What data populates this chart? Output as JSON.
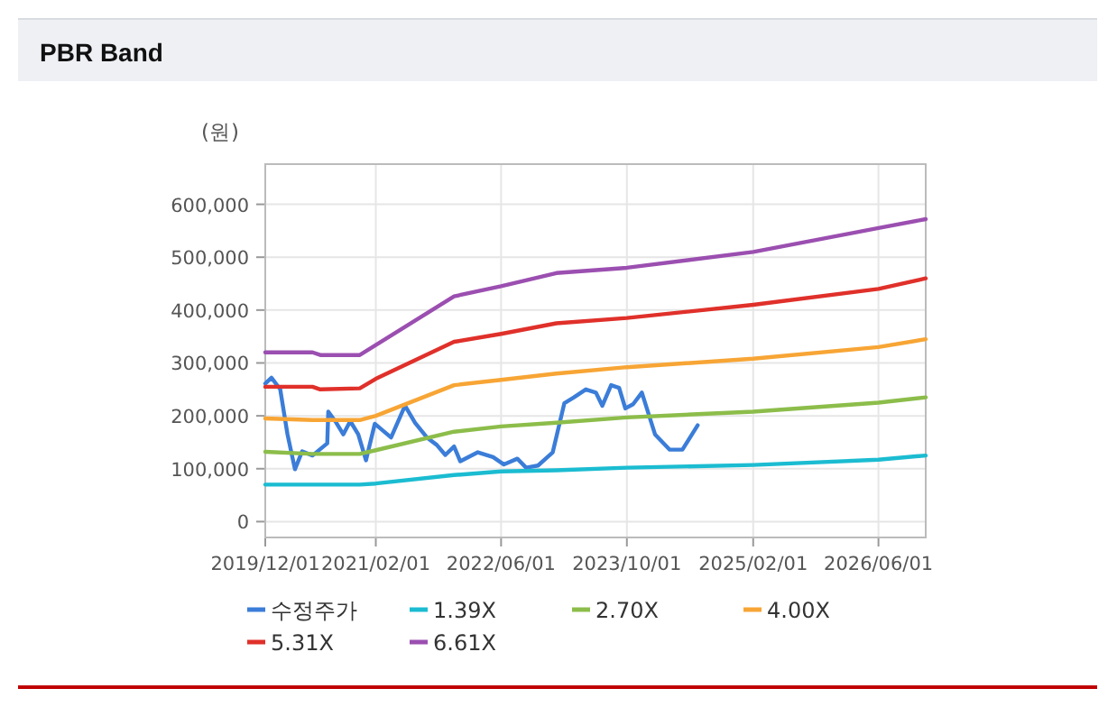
{
  "chart_data": {
    "type": "line",
    "title": "PBR Band",
    "ylabel": "(원)",
    "xlim": [
      "2019-12-01",
      "2026-12-01"
    ],
    "ylim": [
      -30000,
      676000
    ],
    "xticks": [
      {
        "value": "2019-12-01",
        "label": "2019/12/01"
      },
      {
        "value": "2021-02-01",
        "label": "2021/02/01"
      },
      {
        "value": "2022-06-01",
        "label": "2022/06/01"
      },
      {
        "value": "2023-10-01",
        "label": "2023/10/01"
      },
      {
        "value": "2025-02-01",
        "label": "2025/02/01"
      },
      {
        "value": "2026-06-01",
        "label": "2026/06/01"
      }
    ],
    "yticks": [
      {
        "value": 0,
        "label": "0"
      },
      {
        "value": 100000,
        "label": "100,000"
      },
      {
        "value": 200000,
        "label": "200,000"
      },
      {
        "value": 300000,
        "label": "300,000"
      },
      {
        "value": 400000,
        "label": "400,000"
      },
      {
        "value": 500000,
        "label": "500,000"
      },
      {
        "value": 600000,
        "label": "600,000"
      }
    ],
    "grid": true,
    "legend": "bottom",
    "marker": "none",
    "line_style": "solid",
    "series": [
      {
        "name": "수정주가",
        "color": "#3b7dd8",
        "x": [
          "2019-12-01",
          "2019-12-25",
          "2020-01-28",
          "2020-02-25",
          "2020-03-25",
          "2020-04-22",
          "2020-06-01",
          "2020-07-28",
          "2020-08-01",
          "2020-09-01",
          "2020-09-28",
          "2020-10-25",
          "2020-11-25",
          "2020-12-25",
          "2021-01-28",
          "2021-04-01",
          "2021-05-25",
          "2021-07-03",
          "2021-08-18",
          "2021-09-25",
          "2021-10-28",
          "2021-12-01",
          "2021-12-25",
          "2022-03-03",
          "2022-05-01",
          "2022-06-12",
          "2022-08-03",
          "2022-09-06",
          "2022-10-22",
          "2022-12-18",
          "2023-02-01",
          "2023-03-10",
          "2023-04-25",
          "2023-06-03",
          "2023-06-28",
          "2023-08-01",
          "2023-09-01",
          "2023-09-25",
          "2023-10-25",
          "2023-11-28",
          "2024-01-18",
          "2024-03-15",
          "2024-05-03",
          "2024-07-01"
        ],
        "values": [
          261000,
          272000,
          250000,
          165000,
          99000,
          133000,
          125000,
          148000,
          208000,
          187000,
          165000,
          190000,
          165000,
          116000,
          185000,
          159000,
          219000,
          187000,
          159000,
          145000,
          126000,
          142000,
          114000,
          131000,
          122000,
          108000,
          119000,
          102000,
          106000,
          131000,
          224000,
          235000,
          250000,
          244000,
          219000,
          258000,
          253000,
          214000,
          222000,
          244000,
          165000,
          136000,
          136000,
          182000
        ]
      },
      {
        "name": "1.39X",
        "color": "#1bbcd1",
        "x": [
          "2019-12-01",
          "2020-12-01",
          "2021-02-01",
          "2021-12-01",
          "2022-06-01",
          "2023-01-01",
          "2023-10-01",
          "2025-02-01",
          "2026-06-01",
          "2026-12-01"
        ],
        "values": [
          70000,
          70000,
          72000,
          88000,
          95000,
          97000,
          102000,
          107000,
          117000,
          125000
        ]
      },
      {
        "name": "2.70X",
        "color": "#8cbd4a",
        "x": [
          "2019-12-01",
          "2020-06-01",
          "2020-12-01",
          "2021-02-01",
          "2021-12-01",
          "2022-06-01",
          "2023-01-01",
          "2023-10-01",
          "2025-02-01",
          "2026-06-01",
          "2026-12-01"
        ],
        "values": [
          132000,
          128000,
          128000,
          135000,
          170000,
          180000,
          187000,
          197000,
          208000,
          225000,
          235000
        ]
      },
      {
        "name": "4.00X",
        "color": "#f7a535",
        "x": [
          "2019-12-01",
          "2020-06-01",
          "2020-12-01",
          "2021-02-01",
          "2021-12-01",
          "2022-06-01",
          "2023-01-01",
          "2023-10-01",
          "2025-02-01",
          "2026-06-01",
          "2026-12-01"
        ],
        "values": [
          195000,
          192000,
          192000,
          200000,
          258000,
          268000,
          280000,
          292000,
          308000,
          330000,
          345000
        ]
      },
      {
        "name": "5.31X",
        "color": "#e0302a",
        "x": [
          "2019-12-01",
          "2020-06-01",
          "2020-07-01",
          "2020-12-01",
          "2021-02-01",
          "2021-12-01",
          "2022-06-01",
          "2023-01-01",
          "2023-10-01",
          "2025-02-01",
          "2026-06-01",
          "2026-12-01"
        ],
        "values": [
          255000,
          255000,
          250000,
          252000,
          270000,
          340000,
          355000,
          375000,
          385000,
          410000,
          440000,
          460000
        ]
      },
      {
        "name": "6.61X",
        "color": "#9b4fb0",
        "x": [
          "2019-12-01",
          "2020-06-01",
          "2020-07-01",
          "2020-12-01",
          "2021-12-01",
          "2022-06-01",
          "2023-01-01",
          "2023-10-01",
          "2025-02-01",
          "2026-06-01",
          "2026-12-01"
        ],
        "values": [
          320000,
          320000,
          315000,
          315000,
          426000,
          445000,
          470000,
          480000,
          510000,
          555000,
          572000
        ]
      }
    ]
  }
}
